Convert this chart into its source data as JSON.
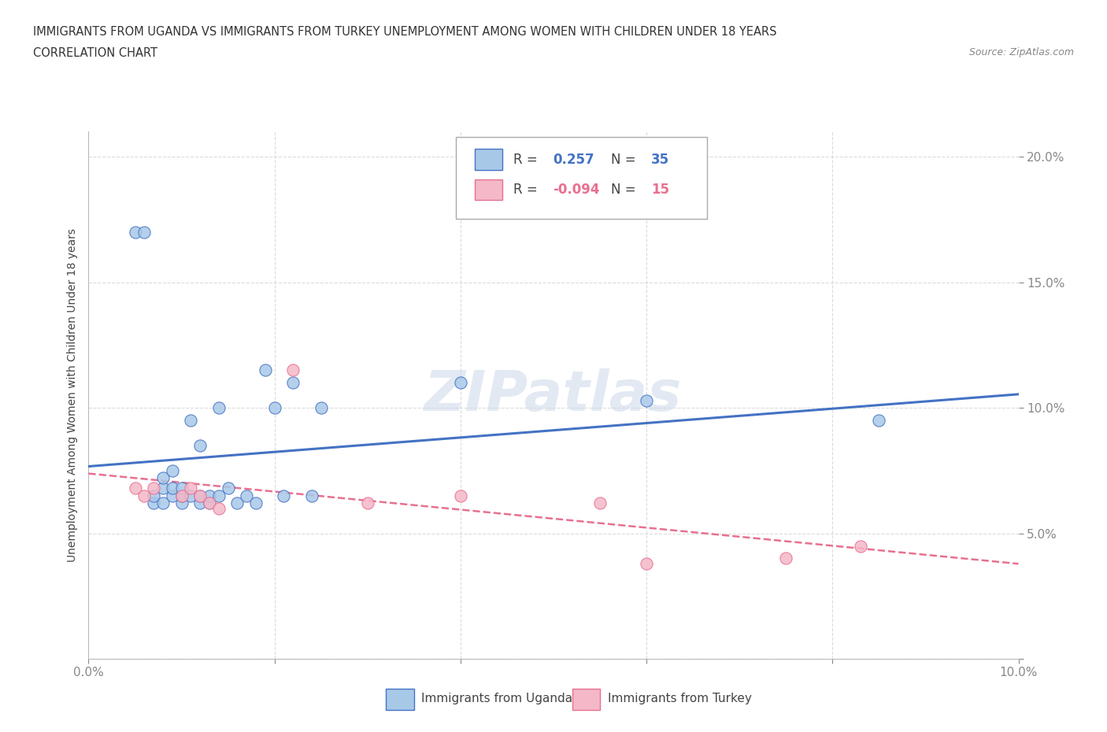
{
  "title_line1": "IMMIGRANTS FROM UGANDA VS IMMIGRANTS FROM TURKEY UNEMPLOYMENT AMONG WOMEN WITH CHILDREN UNDER 18 YEARS",
  "title_line2": "CORRELATION CHART",
  "source": "Source: ZipAtlas.com",
  "ylabel": "Unemployment Among Women with Children Under 18 years",
  "xlim": [
    0.0,
    0.1
  ],
  "ylim": [
    0.0,
    0.21
  ],
  "xticks": [
    0.0,
    0.02,
    0.04,
    0.06,
    0.08,
    0.1
  ],
  "yticks": [
    0.0,
    0.05,
    0.1,
    0.15,
    0.2
  ],
  "uganda_color": "#a8c8e8",
  "turkey_color": "#f4b8c8",
  "uganda_line_color": "#4472c4",
  "turkey_line_color": "#e87090",
  "uganda_R": 0.257,
  "uganda_N": 35,
  "turkey_R": -0.094,
  "turkey_N": 15,
  "uganda_x": [
    0.005,
    0.006,
    0.007,
    0.007,
    0.008,
    0.008,
    0.008,
    0.009,
    0.009,
    0.009,
    0.01,
    0.01,
    0.01,
    0.011,
    0.011,
    0.012,
    0.012,
    0.012,
    0.013,
    0.013,
    0.014,
    0.014,
    0.015,
    0.016,
    0.017,
    0.018,
    0.019,
    0.02,
    0.021,
    0.022,
    0.024,
    0.025,
    0.04,
    0.06,
    0.085
  ],
  "uganda_y": [
    0.17,
    0.17,
    0.062,
    0.065,
    0.062,
    0.068,
    0.072,
    0.065,
    0.068,
    0.075,
    0.062,
    0.065,
    0.068,
    0.065,
    0.095,
    0.062,
    0.065,
    0.085,
    0.062,
    0.065,
    0.1,
    0.065,
    0.068,
    0.062,
    0.065,
    0.062,
    0.115,
    0.1,
    0.065,
    0.11,
    0.065,
    0.1,
    0.11,
    0.103,
    0.095
  ],
  "turkey_x": [
    0.005,
    0.006,
    0.007,
    0.01,
    0.011,
    0.012,
    0.013,
    0.014,
    0.022,
    0.03,
    0.04,
    0.055,
    0.06,
    0.075,
    0.083
  ],
  "turkey_y": [
    0.068,
    0.065,
    0.068,
    0.065,
    0.068,
    0.065,
    0.062,
    0.06,
    0.115,
    0.062,
    0.065,
    0.062,
    0.038,
    0.04,
    0.045
  ],
  "background_color": "#ffffff",
  "grid_color": "#cccccc"
}
